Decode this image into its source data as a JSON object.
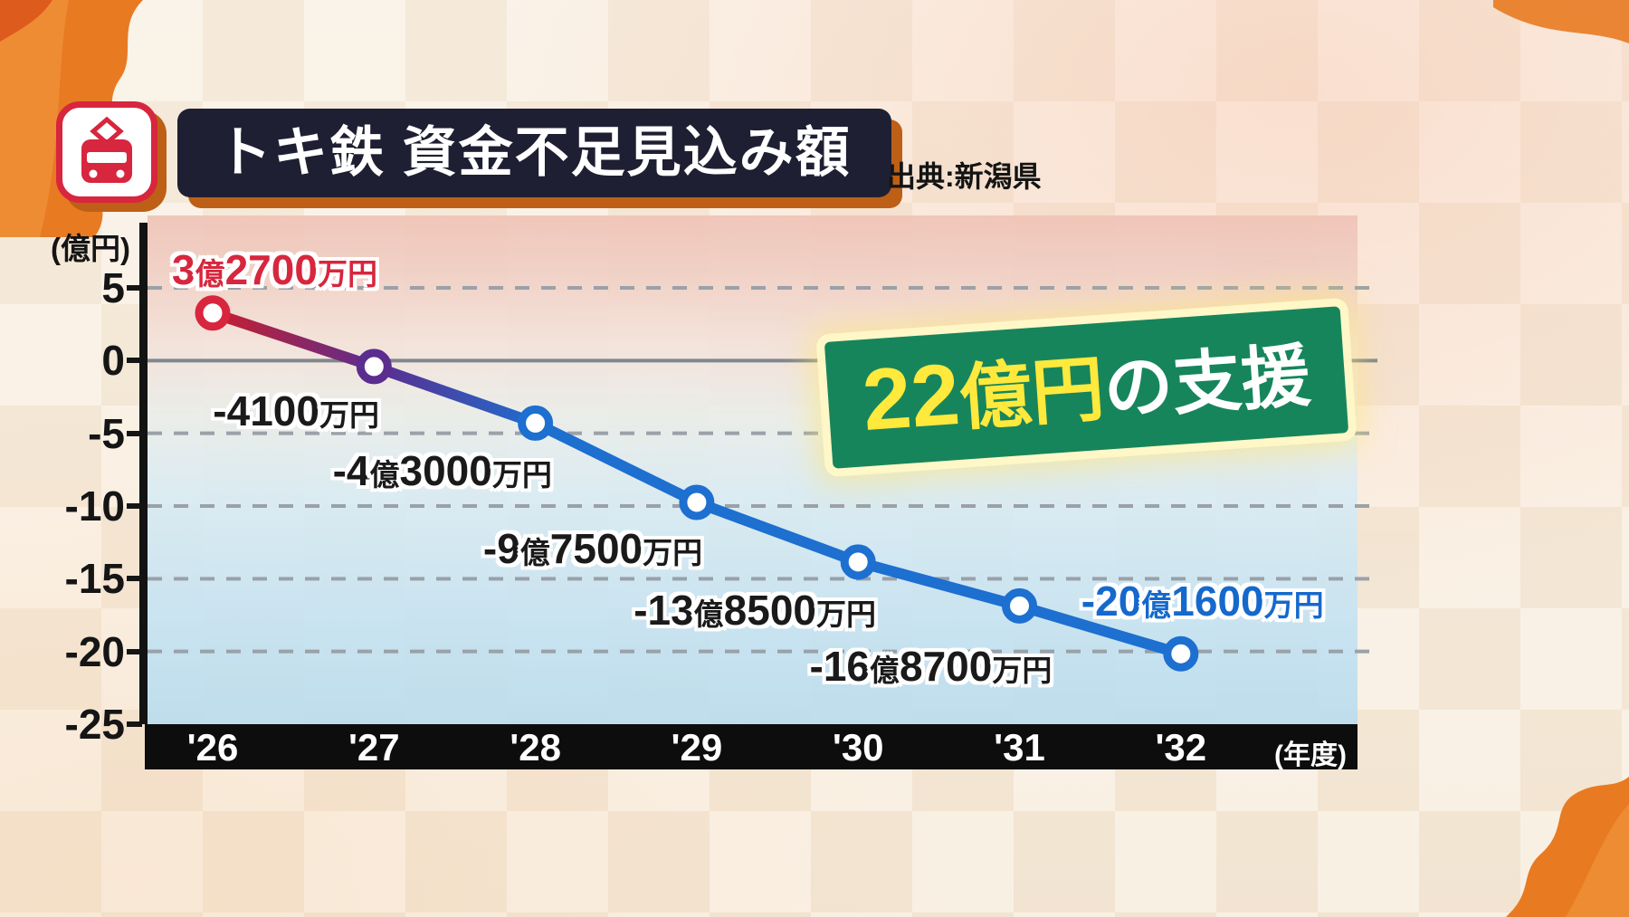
{
  "header": {
    "title": "トキ鉄 資金不足見込み額",
    "source": "出典:新潟県"
  },
  "annotation": {
    "number": "22",
    "unit": "億円",
    "rest": "の支援"
  },
  "chart_data": {
    "type": "line",
    "title": "トキ鉄 資金不足見込み額",
    "source": "出典:新潟県",
    "y_unit_label": "(億円)",
    "x_unit_label": "(年度)",
    "categories": [
      "'26",
      "'27",
      "'28",
      "'29",
      "'30",
      "'31",
      "'32"
    ],
    "values": [
      3.27,
      -0.41,
      -4.3,
      -9.75,
      -13.85,
      -16.87,
      -20.16
    ],
    "point_labels": [
      "3億2700万円",
      "-4100万円",
      "-4億3000万円",
      "-9億7500万円",
      "-13億8500万円",
      "-16億8700万円",
      "-20億1600万円"
    ],
    "point_label_colors": [
      "#d7263d",
      "#1a1a1a",
      "#1a1a1a",
      "#1a1a1a",
      "#1a1a1a",
      "#1a1a1a",
      "#1569cd"
    ],
    "point_ring_colors": [
      "#d7263d",
      "#5b2d8f",
      "#1d6fd0",
      "#1d6fd0",
      "#1d6fd0",
      "#1d6fd0",
      "#1d6fd0"
    ],
    "line_gradient": [
      "#c81f2e",
      "#5b2d8f",
      "#1d6fd0"
    ],
    "y_ticks": [
      5,
      0,
      -5,
      -10,
      -15,
      -20,
      -25
    ],
    "ylim": [
      -25,
      5
    ],
    "grid": "dashed horizontal, solid zero line",
    "annotation": "22億円の支援"
  }
}
